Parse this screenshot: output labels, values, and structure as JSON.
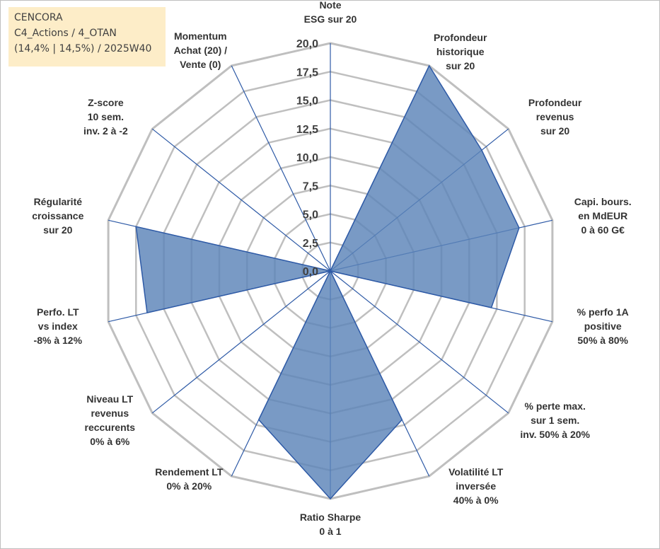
{
  "info": {
    "line1": "CENCORA",
    "line2": "C4_Actions / 4_OTAN",
    "line3": "(14,4% | 14,5%) / 2025W40"
  },
  "colors": {
    "fill": "#5b84b8",
    "line": "#2e5aa6",
    "grid": "#bfbfbf",
    "box": "#fdedc8"
  },
  "chart_data": {
    "type": "radar",
    "title": "",
    "range": [
      0,
      20
    ],
    "ticks": [
      0,
      2.5,
      5,
      7.5,
      10,
      12.5,
      15,
      17.5,
      20
    ],
    "tick_labels": [
      "0,0",
      "2,5",
      "5,0",
      "7,5",
      "10,0",
      "12,5",
      "15,0",
      "17,5",
      "20,0"
    ],
    "axes": [
      {
        "label": [
          "Note",
          "ESG sur 20"
        ],
        "value": 0
      },
      {
        "label": [
          "Profondeur",
          "historique",
          "sur 20"
        ],
        "value": 20
      },
      {
        "label": [
          "Profondeur",
          "revenus",
          "sur 20"
        ],
        "value": 17
      },
      {
        "label": [
          "Capi. bours.",
          "en MdEUR",
          "0 à 60 G€"
        ],
        "value": 17
      },
      {
        "label": [
          "% perfo 1A",
          "positive",
          "50% à 80%"
        ],
        "value": 14.5
      },
      {
        "label": [
          "% perte max.",
          "sur 1 sem.",
          "inv. 50% à 20%"
        ],
        "value": 0
      },
      {
        "label": [
          "Volatilité LT",
          "inversée",
          "40% à 0%"
        ],
        "value": 14.5
      },
      {
        "label": [
          "Ratio Sharpe",
          "0 à 1"
        ],
        "value": 20
      },
      {
        "label": [
          "Rendement LT",
          "0% à 20%"
        ],
        "value": 14.5
      },
      {
        "label": [
          "Niveau LT",
          "revenus",
          "reccurents",
          "0% à 6%"
        ],
        "value": 0
      },
      {
        "label": [
          "Perfo. LT",
          "vs index",
          "-8% à 12%"
        ],
        "value": 16.5
      },
      {
        "label": [
          "Régularité",
          "croissance",
          "sur 20"
        ],
        "value": 17.5
      },
      {
        "label": [
          "Z-score",
          "10 sem.",
          "inv. 2 à -2"
        ],
        "value": 0
      },
      {
        "label": [
          "Momentum",
          "Achat (20) /",
          "Vente (0)"
        ],
        "value": 0
      }
    ],
    "series": [
      {
        "name": "CENCORA",
        "values": [
          0,
          20,
          17,
          17,
          14.5,
          0,
          14.5,
          20,
          14.5,
          0,
          16.5,
          17.5,
          0,
          0
        ]
      }
    ]
  }
}
